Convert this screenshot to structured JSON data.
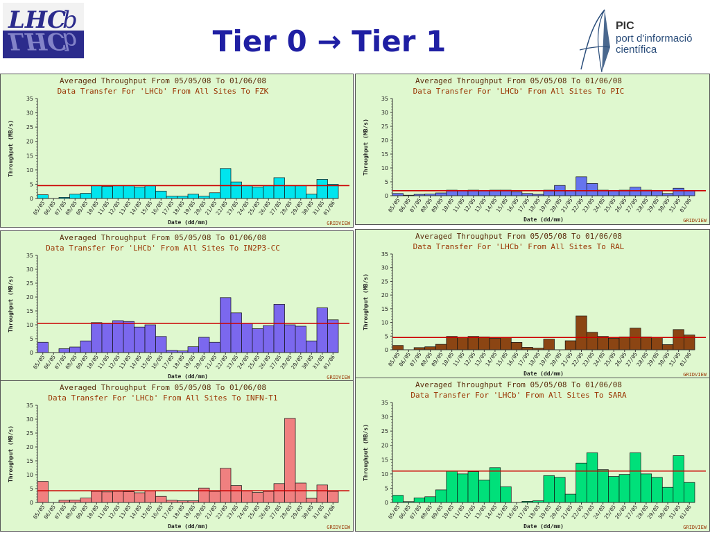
{
  "title": {
    "part1": "Tier 0",
    "arrow": "→",
    "part2": "Tier 1"
  },
  "logos": {
    "lhcb_text": "LHCb",
    "pic_name": "PIC",
    "pic_line1": "port d'informació",
    "pic_line2": "científica"
  },
  "colors": {
    "title": "#1f1fa3",
    "chart_bg": "#dff8cf",
    "avg_line": "#cc0000",
    "heading_text": "#993300"
  },
  "chart_data": [
    {
      "type": "bar",
      "title": "Averaged Throughput From 05/05/08 To 01/06/08",
      "subtitle": "Data Transfer For 'LHCb' From All Sites To FZK",
      "xlabel": "Date (dd/mm)",
      "ylabel": "Throughput (MB/s)",
      "ylim": [
        0,
        35
      ],
      "yticks": [
        0,
        5,
        10,
        15,
        20,
        25,
        30,
        35
      ],
      "footer": "GRIDVIEW",
      "color": "#00e5ee",
      "average": 4.5,
      "categories": [
        "05/05",
        "06/05",
        "07/05",
        "08/05",
        "09/05",
        "10/05",
        "11/05",
        "12/05",
        "13/05",
        "14/05",
        "15/05",
        "16/05",
        "17/05",
        "18/05",
        "19/05",
        "20/05",
        "21/05",
        "22/05",
        "23/05",
        "24/05",
        "25/05",
        "26/05",
        "27/05",
        "28/05",
        "29/05",
        "30/05",
        "31/05",
        "01/06"
      ],
      "values": [
        1.3,
        0,
        0.4,
        1.5,
        1.8,
        4.5,
        4.2,
        4.5,
        4.5,
        4.0,
        4.5,
        2.6,
        0.8,
        0.8,
        1.5,
        0.8,
        2.0,
        10.5,
        5.8,
        4.5,
        4.0,
        4.5,
        7.3,
        4.5,
        4.5,
        1.5,
        6.7,
        5.0
      ]
    },
    {
      "type": "bar",
      "title": "Averaged Throughput From 05/05/08 To 01/06/08",
      "subtitle": "Data Transfer For 'LHCb' From All Sites To PIC",
      "xlabel": "Date (dd/mm)",
      "ylabel": "Throughput (MB/s)",
      "ylim": [
        0,
        35
      ],
      "yticks": [
        0,
        5,
        10,
        15,
        20,
        25,
        30,
        35
      ],
      "footer": "GRIDVIEW",
      "color": "#6674ee",
      "average": 1.8,
      "categories": [
        "05/05",
        "06/05",
        "07/05",
        "08/05",
        "09/05",
        "10/05",
        "11/05",
        "12/05",
        "13/05",
        "14/05",
        "15/05",
        "16/05",
        "17/05",
        "18/05",
        "19/05",
        "20/05",
        "21/05",
        "22/05",
        "23/05",
        "24/05",
        "25/05",
        "26/05",
        "27/05",
        "28/05",
        "29/05",
        "30/05",
        "31/05",
        "01/06"
      ],
      "values": [
        0.8,
        0.2,
        0.5,
        0.6,
        1.0,
        2.0,
        1.8,
        2.0,
        1.8,
        2.0,
        2.0,
        1.4,
        0.8,
        0.5,
        2.0,
        3.7,
        1.8,
        6.8,
        4.4,
        2.0,
        1.8,
        2.0,
        3.1,
        2.0,
        1.8,
        0.8,
        2.7,
        1.8
      ]
    },
    {
      "type": "bar",
      "title": "Averaged Throughput From 05/05/08 To 01/06/08",
      "subtitle": "Data Transfer For 'LHCb' From All Sites To IN2P3-CC",
      "xlabel": "Date (dd/mm)",
      "ylabel": "Throughput (MB/s)",
      "ylim": [
        0,
        35
      ],
      "yticks": [
        0,
        5,
        10,
        15,
        20,
        25,
        30,
        35
      ],
      "footer": "GRIDVIEW",
      "color": "#7b68ee",
      "average": 10.5,
      "categories": [
        "05/05",
        "06/05",
        "07/05",
        "08/05",
        "09/05",
        "10/05",
        "11/05",
        "12/05",
        "13/05",
        "14/05",
        "15/05",
        "16/05",
        "17/05",
        "18/05",
        "19/05",
        "20/05",
        "21/05",
        "22/05",
        "23/05",
        "24/05",
        "25/05",
        "26/05",
        "27/05",
        "28/05",
        "29/05",
        "30/05",
        "31/05",
        "01/06"
      ],
      "values": [
        3.7,
        0,
        1.4,
        2.0,
        4.2,
        10.8,
        10.6,
        11.5,
        11.2,
        9.2,
        10.0,
        5.8,
        0.8,
        0.6,
        2.1,
        5.5,
        3.7,
        19.8,
        14.3,
        10.5,
        8.6,
        9.7,
        17.4,
        10.0,
        9.5,
        4.2,
        16.1,
        11.8
      ]
    },
    {
      "type": "bar",
      "title": "Averaged Throughput From 05/05/08 To 01/06/08",
      "subtitle": "Data Transfer For 'LHCb' From All Sites To RAL",
      "xlabel": "Date (dd/mm)",
      "ylabel": "Throughput (MB/s)",
      "ylim": [
        0,
        35
      ],
      "yticks": [
        0,
        5,
        10,
        15,
        20,
        25,
        30,
        35
      ],
      "footer": "GRIDVIEW",
      "color": "#8b4513",
      "average": 4.5,
      "categories": [
        "05/05",
        "06/05",
        "07/05",
        "08/05",
        "09/05",
        "10/05",
        "11/05",
        "12/05",
        "13/05",
        "14/05",
        "15/05",
        "16/05",
        "17/05",
        "18/05",
        "19/05",
        "20/05",
        "21/05",
        "22/05",
        "23/05",
        "24/05",
        "25/05",
        "26/05",
        "27/05",
        "28/05",
        "29/05",
        "30/05",
        "31/05",
        "01/06"
      ],
      "values": [
        1.6,
        0,
        0.8,
        1.1,
        2.0,
        4.9,
        4.5,
        4.9,
        4.7,
        4.2,
        4.6,
        2.7,
        0.9,
        0.6,
        3.9,
        0,
        3.3,
        12.4,
        6.4,
        4.9,
        4.2,
        4.7,
        7.9,
        4.7,
        4.5,
        1.9,
        7.4,
        5.4
      ]
    },
    {
      "type": "bar",
      "title": "Averaged Throughput From 05/05/08 To 01/06/08",
      "subtitle": "Data Transfer For 'LHCb' From All Sites To INFN-T1",
      "xlabel": "Date (dd/mm)",
      "ylabel": "Throughput (MB/s)",
      "ylim": [
        0,
        35
      ],
      "yticks": [
        0,
        5,
        10,
        15,
        20,
        25,
        30,
        35
      ],
      "footer": "GRIDVIEW",
      "color": "#f08080",
      "average": 4.2,
      "categories": [
        "05/05",
        "06/05",
        "07/05",
        "08/05",
        "09/05",
        "10/05",
        "11/05",
        "12/05",
        "13/05",
        "14/05",
        "15/05",
        "16/05",
        "17/05",
        "18/05",
        "19/05",
        "20/05",
        "21/05",
        "22/05",
        "23/05",
        "24/05",
        "25/05",
        "26/05",
        "27/05",
        "28/05",
        "29/05",
        "30/05",
        "31/05",
        "01/06"
      ],
      "values": [
        7.6,
        0,
        0.8,
        0.9,
        1.6,
        4.0,
        3.8,
        4.0,
        3.9,
        3.5,
        4.2,
        2.2,
        0.8,
        0.6,
        0.6,
        5.2,
        4.0,
        12.3,
        6.1,
        4.3,
        3.6,
        4.0,
        6.8,
        30.3,
        7.0,
        1.5,
        6.3,
        4.0
      ]
    },
    {
      "type": "bar",
      "title": "Averaged Throughput From 05/05/08 To 01/06/08",
      "subtitle": "Data Transfer For 'LHCb' From All Sites To SARA",
      "xlabel": "Date (dd/mm)",
      "ylabel": "Throughput (MB/s)",
      "ylim": [
        0,
        35
      ],
      "yticks": [
        0,
        5,
        10,
        15,
        20,
        25,
        30,
        35
      ],
      "footer": "GRIDVIEW",
      "color": "#00e07a",
      "average": 11.0,
      "categories": [
        "05/05",
        "06/05",
        "07/05",
        "08/05",
        "09/05",
        "10/05",
        "11/05",
        "12/05",
        "13/05",
        "14/05",
        "15/05",
        "16/05",
        "17/05",
        "18/05",
        "19/05",
        "20/05",
        "21/05",
        "22/05",
        "23/05",
        "24/05",
        "25/05",
        "26/05",
        "27/05",
        "28/05",
        "29/05",
        "30/05",
        "31/05",
        "01/06"
      ],
      "values": [
        2.5,
        0.3,
        1.6,
        2.0,
        4.4,
        10.9,
        10.0,
        10.8,
        7.8,
        12.2,
        5.5,
        0,
        0.4,
        0.6,
        9.4,
        8.8,
        2.9,
        13.8,
        17.4,
        11.5,
        9.1,
        9.8,
        17.4,
        10.0,
        8.8,
        5.3,
        16.4,
        7.0
      ]
    }
  ]
}
